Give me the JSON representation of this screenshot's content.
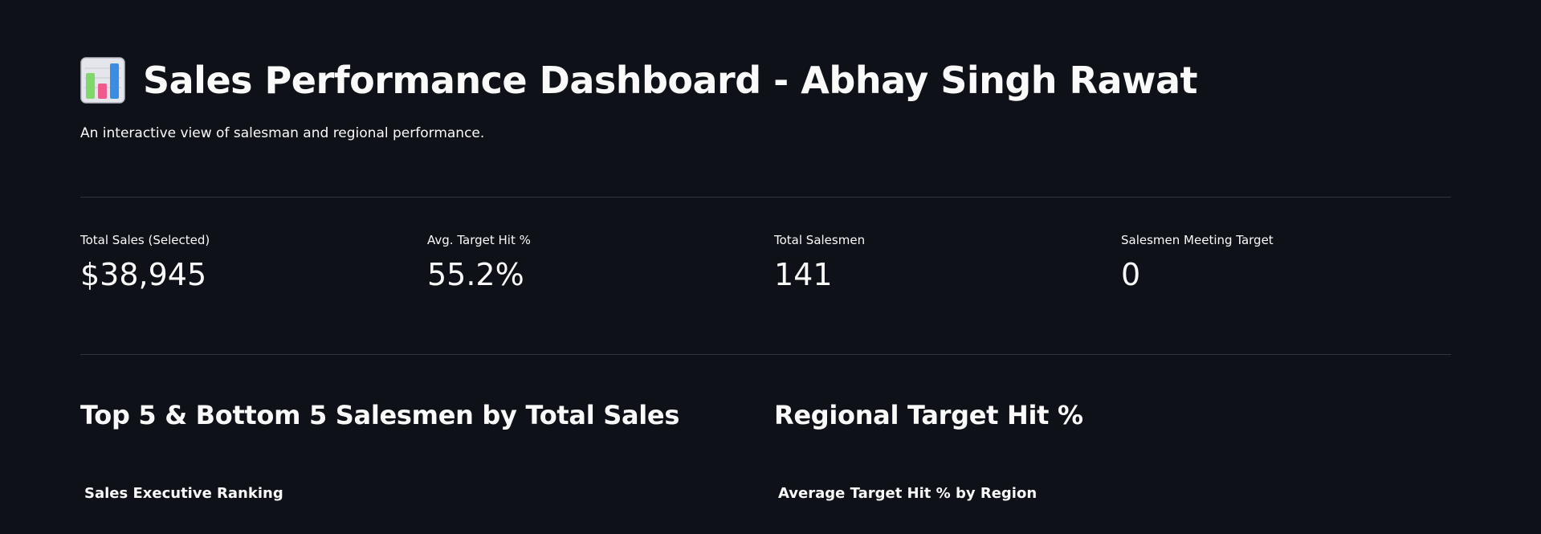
{
  "header": {
    "emoji": "bar-chart-emoji",
    "title": "Sales Performance Dashboard - Abhay Singh Rawat",
    "subtitle": "An interactive view of salesman and regional performance."
  },
  "metrics": [
    {
      "label": "Total Sales (Selected)",
      "value": "$38,945"
    },
    {
      "label": "Avg. Target Hit %",
      "value": "55.2%"
    },
    {
      "label": "Total Salesmen",
      "value": "141"
    },
    {
      "label": "Salesmen Meeting Target",
      "value": "0"
    }
  ],
  "sections": {
    "left": {
      "heading": "Top 5 & Bottom 5 Salesmen by Total Sales",
      "chart_title": "Sales Executive Ranking"
    },
    "right": {
      "heading": "Regional Target Hit %",
      "chart_title": "Average Target Hit % by Region"
    }
  },
  "colors": {
    "background": "#0e1117",
    "text": "#fafafa",
    "divider": "#31333f"
  }
}
